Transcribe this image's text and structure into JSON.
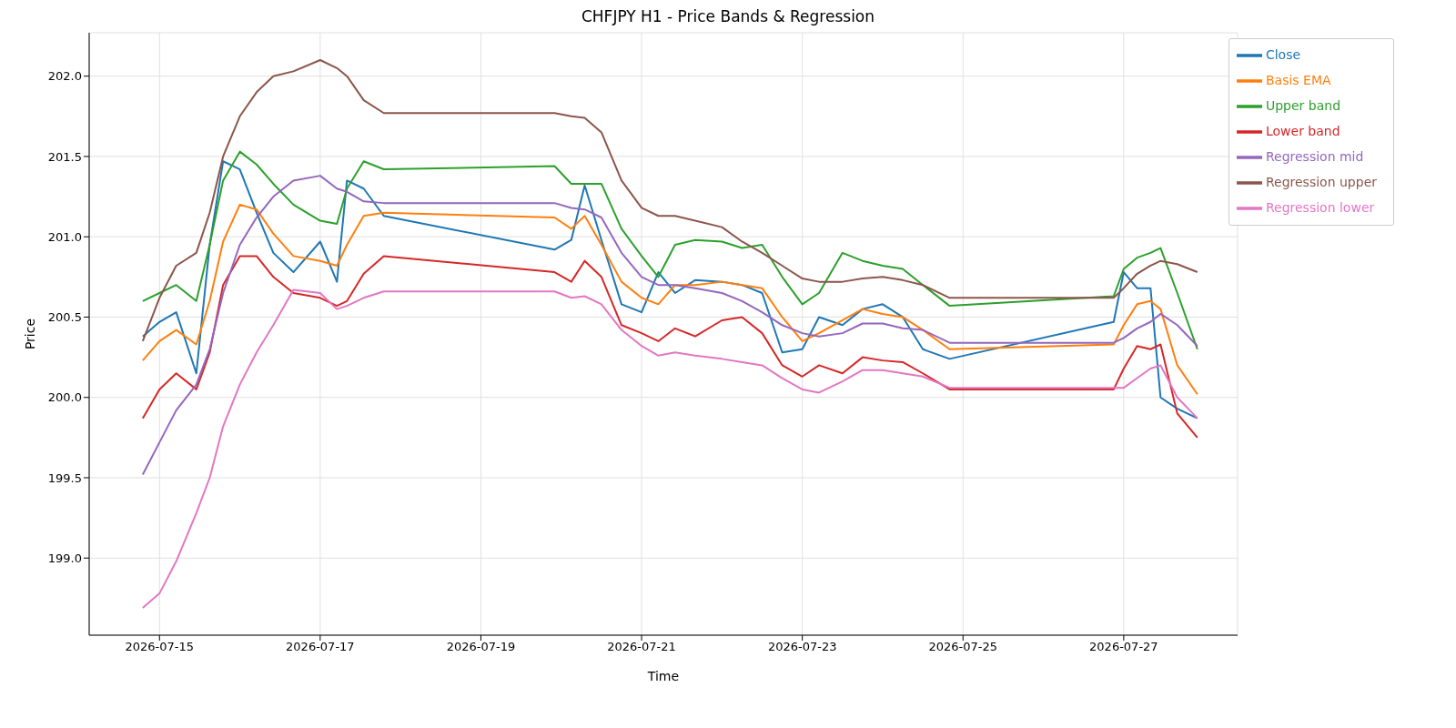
{
  "chart_data": {
    "type": "line",
    "title": "CHFJPY H1 - Price Bands & Regression",
    "xlabel": "Time",
    "ylabel": "Price",
    "x": [
      "2026-07-14T19:00",
      "2026-07-15T00:00",
      "2026-07-15T05:00",
      "2026-07-15T11:00",
      "2026-07-15T15:00",
      "2026-07-15T19:00",
      "2026-07-16T00:00",
      "2026-07-16T05:00",
      "2026-07-16T10:00",
      "2026-07-16T16:00",
      "2026-07-17T00:00",
      "2026-07-17T05:00",
      "2026-07-17T08:00",
      "2026-07-17T13:00",
      "2026-07-17T19:00",
      "2026-07-19T22:00",
      "2026-07-20T03:00",
      "2026-07-20T07:00",
      "2026-07-20T12:00",
      "2026-07-20T18:00",
      "2026-07-21T00:00",
      "2026-07-21T05:00",
      "2026-07-21T10:00",
      "2026-07-21T16:00",
      "2026-07-22T00:00",
      "2026-07-22T06:00",
      "2026-07-22T12:00",
      "2026-07-22T18:00",
      "2026-07-23T00:00",
      "2026-07-23T05:00",
      "2026-07-23T12:00",
      "2026-07-23T18:00",
      "2026-07-24T00:00",
      "2026-07-24T06:00",
      "2026-07-24T12:00",
      "2026-07-24T20:00",
      "2026-07-26T21:00",
      "2026-07-27T00:00",
      "2026-07-27T04:00",
      "2026-07-27T08:00",
      "2026-07-27T11:00",
      "2026-07-27T16:00",
      "2026-07-27T22:00"
    ],
    "series": [
      {
        "name": "Close",
        "color": "#1f77b4",
        "values": [
          200.38,
          200.47,
          200.53,
          200.15,
          200.95,
          201.47,
          201.42,
          201.15,
          200.9,
          200.78,
          200.97,
          200.72,
          201.35,
          201.3,
          201.13,
          200.92,
          200.98,
          201.32,
          200.98,
          200.58,
          200.53,
          200.78,
          200.65,
          200.73,
          200.72,
          200.7,
          200.65,
          200.28,
          200.3,
          200.5,
          200.45,
          200.55,
          200.58,
          200.5,
          200.3,
          200.24,
          200.47,
          200.78,
          200.68,
          200.68,
          200.0,
          199.93,
          199.87
        ]
      },
      {
        "name": "Basis EMA",
        "color": "#ff7f0e",
        "values": [
          200.23,
          200.35,
          200.42,
          200.33,
          200.6,
          200.97,
          201.2,
          201.17,
          201.02,
          200.88,
          200.85,
          200.82,
          200.95,
          201.13,
          201.15,
          201.12,
          201.05,
          201.13,
          200.95,
          200.72,
          200.62,
          200.58,
          200.7,
          200.7,
          200.72,
          200.7,
          200.68,
          200.5,
          200.35,
          200.4,
          200.48,
          200.55,
          200.52,
          200.5,
          200.42,
          200.3,
          200.33,
          200.45,
          200.58,
          200.6,
          200.55,
          200.2,
          200.02
        ]
      },
      {
        "name": "Upper band",
        "color": "#2ca02c",
        "values": [
          200.6,
          200.65,
          200.7,
          200.6,
          200.95,
          201.35,
          201.53,
          201.45,
          201.33,
          201.2,
          201.1,
          201.08,
          201.3,
          201.47,
          201.42,
          201.44,
          201.33,
          201.33,
          201.33,
          201.05,
          200.88,
          200.75,
          200.95,
          200.98,
          200.97,
          200.93,
          200.95,
          200.75,
          200.58,
          200.65,
          200.9,
          200.85,
          200.82,
          200.8,
          200.7,
          200.57,
          200.63,
          200.8,
          200.87,
          200.9,
          200.93,
          200.65,
          200.3
        ]
      },
      {
        "name": "Lower band",
        "color": "#d62728",
        "values": [
          199.87,
          200.05,
          200.15,
          200.05,
          200.28,
          200.7,
          200.88,
          200.88,
          200.75,
          200.65,
          200.62,
          200.57,
          200.6,
          200.77,
          200.88,
          200.78,
          200.72,
          200.85,
          200.75,
          200.45,
          200.4,
          200.35,
          200.43,
          200.38,
          200.48,
          200.5,
          200.4,
          200.2,
          200.13,
          200.2,
          200.15,
          200.25,
          200.23,
          200.22,
          200.15,
          200.05,
          200.05,
          200.18,
          200.32,
          200.3,
          200.33,
          199.9,
          199.75
        ]
      },
      {
        "name": "Regression mid",
        "color": "#9467bd",
        "values": [
          199.52,
          199.72,
          199.92,
          200.08,
          200.3,
          200.65,
          200.95,
          201.12,
          201.25,
          201.35,
          201.38,
          201.3,
          201.28,
          201.22,
          201.21,
          201.21,
          201.18,
          201.17,
          201.12,
          200.9,
          200.75,
          200.7,
          200.7,
          200.68,
          200.65,
          200.6,
          200.53,
          200.45,
          200.4,
          200.38,
          200.4,
          200.46,
          200.46,
          200.43,
          200.42,
          200.34,
          200.34,
          200.37,
          200.43,
          200.47,
          200.52,
          200.45,
          200.32
        ]
      },
      {
        "name": "Regression upper",
        "color": "#8c564b",
        "values": [
          200.35,
          200.62,
          200.82,
          200.9,
          201.15,
          201.5,
          201.75,
          201.9,
          202.0,
          202.03,
          202.1,
          202.05,
          202.0,
          201.85,
          201.77,
          201.77,
          201.75,
          201.74,
          201.65,
          201.35,
          201.18,
          201.13,
          201.13,
          201.1,
          201.06,
          200.97,
          200.9,
          200.82,
          200.74,
          200.72,
          200.72,
          200.74,
          200.75,
          200.73,
          200.7,
          200.62,
          200.62,
          200.68,
          200.77,
          200.82,
          200.85,
          200.83,
          200.78
        ]
      },
      {
        "name": "Regression lower",
        "color": "#e377c2",
        "values": [
          198.69,
          198.78,
          198.98,
          199.28,
          199.5,
          199.82,
          200.08,
          200.28,
          200.45,
          200.67,
          200.65,
          200.55,
          200.57,
          200.62,
          200.66,
          200.66,
          200.62,
          200.63,
          200.58,
          200.42,
          200.32,
          200.26,
          200.28,
          200.26,
          200.24,
          200.22,
          200.2,
          200.12,
          200.05,
          200.03,
          200.1,
          200.17,
          200.17,
          200.15,
          200.13,
          200.06,
          200.06,
          200.06,
          200.12,
          200.18,
          200.2,
          200.0,
          199.87
        ]
      }
    ],
    "xlim": [
      "2026-07-14T03:00",
      "2026-07-28T10:00"
    ],
    "xticks": [
      "2026-07-15",
      "2026-07-17",
      "2026-07-19",
      "2026-07-21",
      "2026-07-23",
      "2026-07-25",
      "2026-07-27"
    ],
    "ylim": [
      198.52,
      202.27
    ],
    "yticks": [
      {
        "value": 199,
        "label": "199.0"
      },
      {
        "value": 199.5,
        "label": "199.5"
      },
      {
        "value": 200,
        "label": "200.0"
      },
      {
        "value": 200.5,
        "label": "200.5"
      },
      {
        "value": 201,
        "label": "201.0"
      },
      {
        "value": 201.5,
        "label": "201.5"
      },
      {
        "value": 202,
        "label": "202.0"
      }
    ],
    "grid": true,
    "legend": "top right",
    "marker": "none",
    "line_style": "solid"
  }
}
